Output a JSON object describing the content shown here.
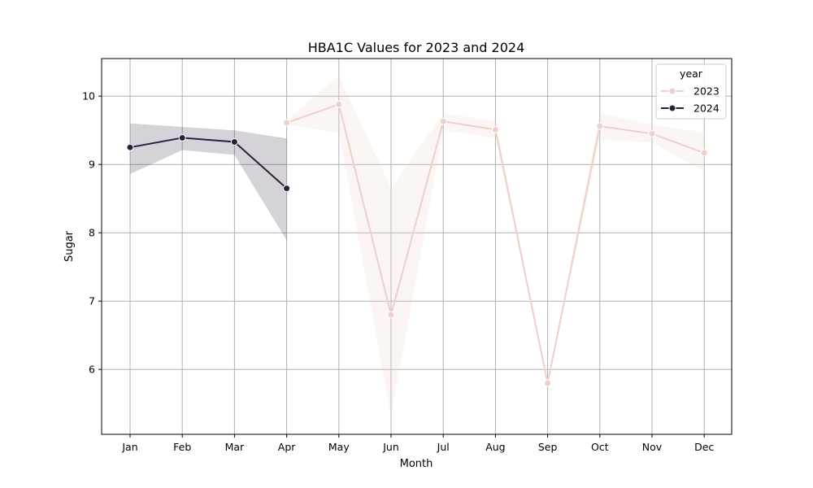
{
  "chart_data": {
    "type": "line",
    "title": "HBA1C Values for 2023 and 2024",
    "xlabel": "Month",
    "ylabel": "Sugar",
    "categories": [
      "Jan",
      "Feb",
      "Mar",
      "Apr",
      "May",
      "Jun",
      "Jul",
      "Aug",
      "Sep",
      "Oct",
      "Nov",
      "Dec"
    ],
    "ylim": [
      5.05,
      10.55
    ],
    "yticks": [
      6,
      7,
      8,
      9,
      10
    ],
    "grid": true,
    "legend": {
      "title": "year",
      "placement": "top-right"
    },
    "series": [
      {
        "name": "2023",
        "color": "#eed0ca",
        "points": [
          {
            "x": "Apr",
            "y": 9.61,
            "lo": 9.58,
            "hi": 9.64
          },
          {
            "x": "May",
            "y": 9.88,
            "lo": 9.47,
            "hi": 10.3
          },
          {
            "x": "Jun",
            "y": 6.8,
            "lo": 5.3,
            "hi": 8.65
          },
          {
            "x": "Jul",
            "y": 9.63,
            "lo": 9.5,
            "hi": 9.75
          },
          {
            "x": "Aug",
            "y": 9.51,
            "lo": 9.38,
            "hi": 9.63
          },
          {
            "x": "Sep",
            "y": 5.8,
            "lo": 5.8,
            "hi": 5.8
          },
          {
            "x": "Oct",
            "y": 9.56,
            "lo": 9.36,
            "hi": 9.75
          },
          {
            "x": "Nov",
            "y": 9.45,
            "lo": 9.32,
            "hi": 9.58
          },
          {
            "x": "Dec",
            "y": 9.17,
            "lo": 8.9,
            "hi": 9.47
          }
        ]
      },
      {
        "name": "2024",
        "color": "#2d1e3e",
        "points": [
          {
            "x": "Jan",
            "y": 9.25,
            "lo": 8.86,
            "hi": 9.6
          },
          {
            "x": "Feb",
            "y": 9.39,
            "lo": 9.21,
            "hi": 9.55
          },
          {
            "x": "Mar",
            "y": 9.33,
            "lo": 9.14,
            "hi": 9.5
          },
          {
            "x": "Apr",
            "y": 8.65,
            "lo": 7.89,
            "hi": 9.38
          }
        ]
      }
    ]
  }
}
